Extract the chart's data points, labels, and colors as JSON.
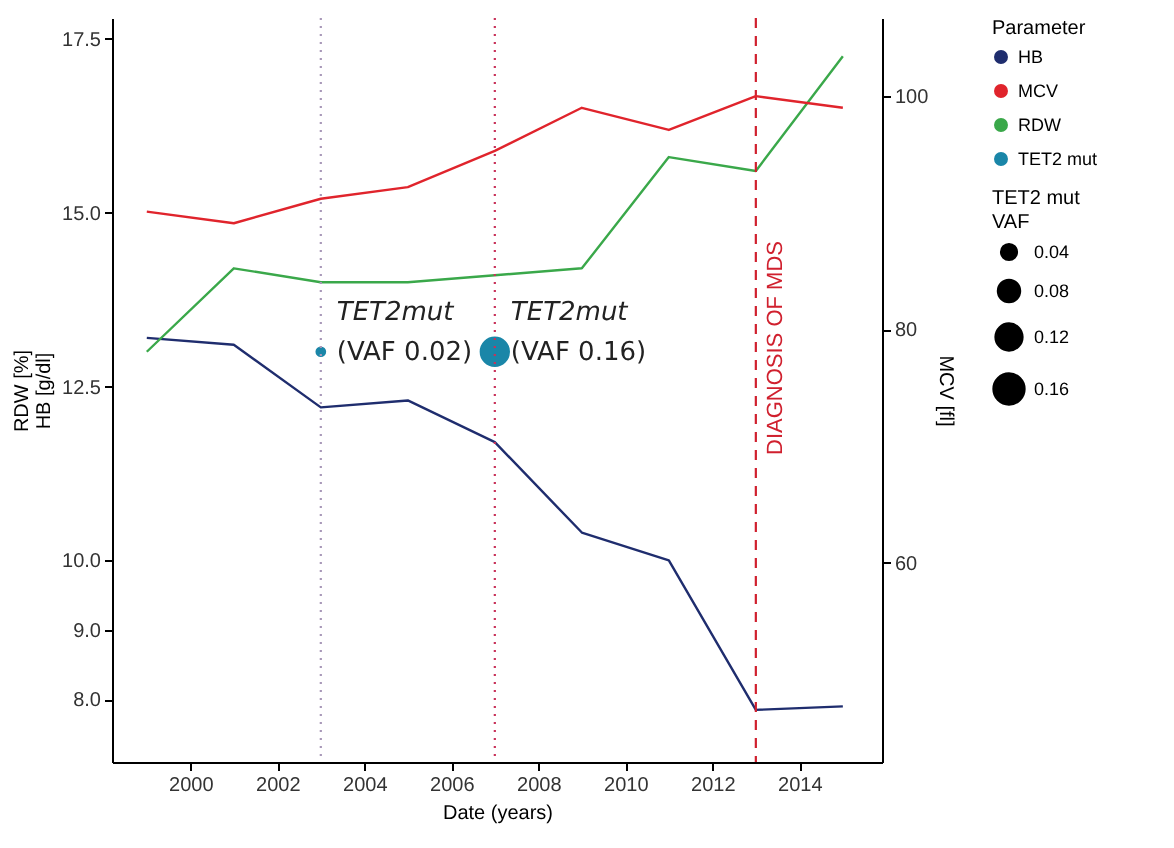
{
  "chart_data": {
    "type": "line",
    "xlabel": "Date (years)",
    "ylabel": "RDW [%]\nHB [g/dl]",
    "y2label": "MCV [fl]",
    "legend_title": "Parameter",
    "legend": "right",
    "grid": false,
    "line_style": "solid",
    "size_legend": [
      0.04,
      0.08,
      0.12,
      0.16
    ],
    "x": [
      1999,
      2001,
      2003,
      2005,
      2007,
      2009,
      2011,
      2013,
      2015
    ],
    "xlim": [
      1998.2,
      2015.9
    ],
    "xticks": [
      2000,
      2002,
      2004,
      2006,
      2008,
      2010,
      2012,
      2014
    ],
    "ylim": [
      7.1,
      17.8
    ],
    "yticks": [
      {
        "value": 8,
        "label": "8.0"
      },
      {
        "value": 9,
        "label": "9.0"
      },
      {
        "value": 10,
        "label": "10.0"
      },
      12.5,
      {
        "value": 15,
        "label": "15.0"
      },
      17.5
    ],
    "y2lim": [
      42.9,
      106.7
    ],
    "y2ticks": [
      60,
      80,
      100
    ],
    "series": [
      {
        "name": "HB",
        "color": "#1f2d6e",
        "values": [
          13.2,
          13.1,
          12.2,
          12.3,
          11.7,
          10.4,
          10.0,
          7.85,
          7.9
        ]
      },
      {
        "name": "MCV",
        "color": "#e0242c",
        "axis": "y2",
        "values": [
          90.1,
          89.1,
          91.2,
          92.2,
          95.3,
          99.0,
          97.1,
          100.0,
          99.0
        ]
      },
      {
        "name": "RDW",
        "color": "#3aa84a",
        "values": [
          13.0,
          14.2,
          14.0,
          14.0,
          14.1,
          14.2,
          15.8,
          15.6,
          17.25
        ]
      },
      {
        "name": "TET2 mut",
        "type": "scatter",
        "color": "#1a86a8",
        "x": [
          2003,
          2007
        ],
        "values": [
          13.0,
          13.0
        ],
        "sizes": [
          0.02,
          0.16
        ]
      }
    ],
    "ref_lines": [
      {
        "axis": "x",
        "value": 2003,
        "line_style": "dotted",
        "color": "#a898b8"
      },
      {
        "axis": "x",
        "value": 2007,
        "line_style": "dotted",
        "color": "#c8325a"
      },
      {
        "axis": "x",
        "value": 2013,
        "line_style": "dashed",
        "color": "#d0202e",
        "label": "DIAGNOSIS OF MDS"
      }
    ],
    "annotations": [
      {
        "text": "TET2mut\n(VAF 0.02)",
        "x": 2003,
        "y": 13.0
      },
      {
        "text": "TET2mut\n(VAF 0.16)",
        "x": 2007,
        "y": 13.0
      },
      "TET2 mut\nVAF"
    ]
  }
}
